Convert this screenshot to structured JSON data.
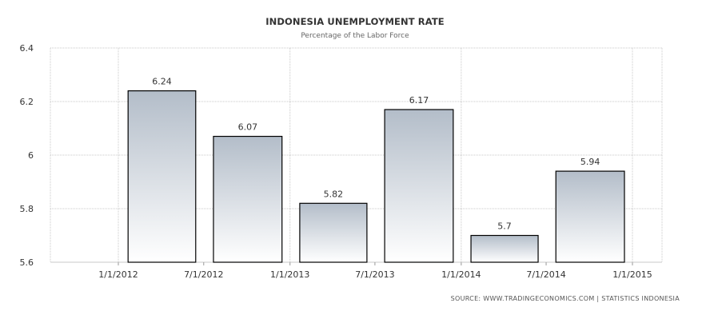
{
  "chart_data": {
    "type": "bar",
    "title": "INDONESIA UNEMPLOYMENT RATE",
    "subtitle": "Percentage of the Labor Force",
    "source": "SOURCE: WWW.TRADINGECONOMICS.COM | STATISTICS INDONESIA",
    "x_tick_labels": [
      "1/1/2012",
      "7/1/2012",
      "1/1/2013",
      "7/1/2013",
      "1/1/2014",
      "7/1/2014",
      "1/1/2015"
    ],
    "y_tick_labels": [
      "6.4",
      "6.2",
      "6",
      "5.8",
      "5.6"
    ],
    "ylim": [
      5.6,
      6.4
    ],
    "grid": true,
    "legend": "none",
    "bars": [
      {
        "start": "2012-02-01",
        "end": "2012-07-01",
        "value": 6.24,
        "label": "6.24"
      },
      {
        "start": "2012-08-01",
        "end": "2013-01-01",
        "value": 6.07,
        "label": "6.07"
      },
      {
        "start": "2013-02-01",
        "end": "2013-07-01",
        "value": 5.82,
        "label": "5.82"
      },
      {
        "start": "2013-08-01",
        "end": "2014-01-01",
        "value": 6.17,
        "label": "6.17"
      },
      {
        "start": "2014-02-01",
        "end": "2014-07-01",
        "value": 5.7,
        "label": "5.7"
      },
      {
        "start": "2014-08-01",
        "end": "2015-01-01",
        "value": 5.94,
        "label": "5.94"
      }
    ],
    "colors": {
      "bar_top": "#b3bdc9",
      "bar_bottom": "#ffffff",
      "bar_stroke": "#000000",
      "grid": "#c8c8c8",
      "text": "#333333"
    }
  }
}
